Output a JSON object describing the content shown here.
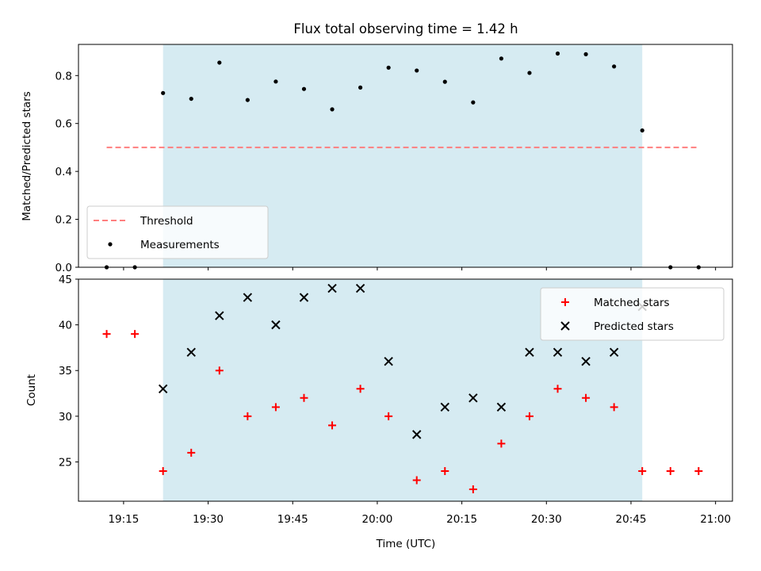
{
  "chart_data": {
    "type": "scatter",
    "title": "Flux total observing time = 1.42 h",
    "xlabel": "Time (UTC)",
    "x_tick_labels": [
      "19:15",
      "19:30",
      "19:45",
      "20:00",
      "20:15",
      "20:30",
      "20:45",
      "21:00"
    ],
    "x_range": [
      "19:07",
      "21:03"
    ],
    "x": [
      "19:12",
      "19:17",
      "19:22",
      "19:27",
      "19:32",
      "19:37",
      "19:42",
      "19:47",
      "19:52",
      "19:57",
      "20:02",
      "20:07",
      "20:12",
      "20:17",
      "20:22",
      "20:27",
      "20:32",
      "20:37",
      "20:42",
      "20:47",
      "20:52",
      "20:57"
    ],
    "observing_window": [
      "19:22",
      "20:47"
    ],
    "window_color": "#add8e6",
    "panels": [
      {
        "ylabel": "Matched/Predicted stars",
        "ylim": [
          0,
          0.93
        ],
        "y_ticks": [
          "0.0",
          "0.2",
          "0.4",
          "0.6",
          "0.8"
        ],
        "legend_position": "lower-left",
        "threshold": {
          "name": "Threshold",
          "value": 0.5,
          "x_start": "19:12",
          "x_end": "20:57",
          "color": "#ff7f7f",
          "style": "dashed"
        },
        "series": [
          {
            "name": "Measurements",
            "marker": "dot",
            "color": "#000000",
            "values": [
              0.0,
              0.0,
              0.727,
              0.703,
              0.854,
              0.698,
              0.775,
              0.744,
              0.659,
              0.75,
              0.833,
              0.821,
              0.774,
              0.688,
              0.871,
              0.811,
              0.892,
              0.889,
              0.838,
              0.571,
              0.0,
              0.0
            ]
          }
        ]
      },
      {
        "ylabel": "Count",
        "ylim": [
          20.7,
          45.0
        ],
        "y_ticks": [
          "25",
          "30",
          "35",
          "40",
          "45"
        ],
        "legend_position": "upper-right",
        "series": [
          {
            "name": "Matched stars",
            "marker": "plus",
            "color": "#ff0000",
            "values": [
              39,
              39,
              24,
              26,
              35,
              30,
              31,
              32,
              29,
              33,
              30,
              23,
              24,
              22,
              27,
              30,
              33,
              32,
              31,
              24,
              24,
              24
            ]
          },
          {
            "name": "Predicted stars",
            "marker": "x",
            "color": "#000000",
            "values": [
              null,
              null,
              33,
              37,
              41,
              43,
              40,
              43,
              44,
              44,
              36,
              28,
              31,
              32,
              31,
              37,
              37,
              36,
              37,
              42,
              null,
              null
            ]
          }
        ]
      }
    ]
  }
}
